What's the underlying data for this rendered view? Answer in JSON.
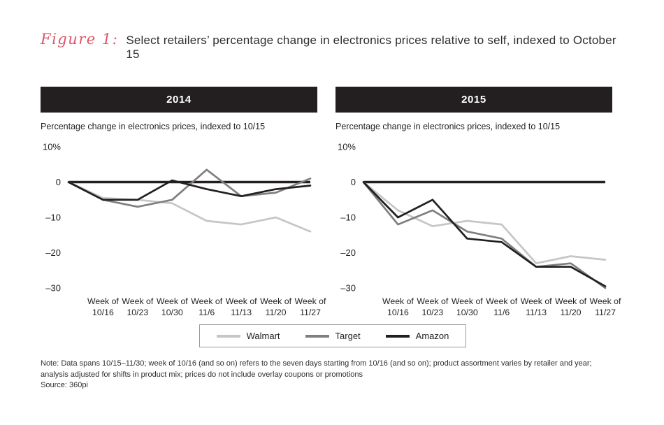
{
  "figure": {
    "label": "Figure 1:",
    "title": "Select retailers’ percentage change in electronics prices relative to self, indexed to October 15"
  },
  "panels": [
    {
      "year": "2014",
      "subtitle": "Percentage change in electronics prices, indexed to 10/15"
    },
    {
      "year": "2015",
      "subtitle": "Percentage change in electronics prices, indexed to 10/15"
    }
  ],
  "legend": {
    "items": [
      {
        "name": "Walmart",
        "color": "#c6c6c6"
      },
      {
        "name": "Target",
        "color": "#7f7f7f"
      },
      {
        "name": "Amazon",
        "color": "#231f20"
      }
    ]
  },
  "notes": {
    "note": "Note: Data spans 10/15–11/30; week of 10/16 (and so on) refers to the seven days starting from 10/16 (and so on); product assortment varies by retailer and year; analysis adjusted for shifts in product mix; prices do not include overlay coupons or promotions",
    "source": "Source: 360pi"
  },
  "colors": {
    "accent": "#df5468",
    "bar": "#231f20",
    "zero_line": "#231f20"
  },
  "chart_data": [
    {
      "type": "line",
      "title": "2014",
      "ylabel": "Percentage change in electronics prices, indexed to 10/15",
      "ylim": [
        -30,
        10
      ],
      "grid": false,
      "yticks": [
        {
          "value": 10,
          "label": "10%"
        },
        {
          "value": 0,
          "label": "0"
        },
        {
          "value": -10,
          "label": "–10"
        },
        {
          "value": -20,
          "label": "–20"
        },
        {
          "value": -30,
          "label": "–30"
        }
      ],
      "x": [
        "10/15",
        "10/16",
        "10/23",
        "10/30",
        "11/6",
        "11/13",
        "11/20",
        "11/27"
      ],
      "xtick_labels": [
        {
          "line1": "Week of",
          "line2": "10/16"
        },
        {
          "line1": "Week of",
          "line2": "10/23"
        },
        {
          "line1": "Week of",
          "line2": "10/30"
        },
        {
          "line1": "Week of",
          "line2": "11/6"
        },
        {
          "line1": "Week of",
          "line2": "11/13"
        },
        {
          "line1": "Week of",
          "line2": "11/20"
        },
        {
          "line1": "Week of",
          "line2": "11/27"
        }
      ],
      "series": [
        {
          "name": "Walmart",
          "color": "#c6c6c6",
          "values": [
            0,
            -4.5,
            -5,
            -6,
            -11,
            -12,
            -10,
            -14
          ]
        },
        {
          "name": "Target",
          "color": "#7f7f7f",
          "values": [
            0,
            -5,
            -7,
            -5,
            3.5,
            -4,
            -3,
            1
          ]
        },
        {
          "name": "Amazon",
          "color": "#231f20",
          "values": [
            0,
            -5,
            -5,
            0.5,
            -2,
            -4,
            -2,
            -1
          ]
        }
      ]
    },
    {
      "type": "line",
      "title": "2015",
      "ylabel": "Percentage change in electronics prices, indexed to 10/15",
      "ylim": [
        -30,
        10
      ],
      "grid": false,
      "yticks": [
        {
          "value": 10,
          "label": "10%"
        },
        {
          "value": 0,
          "label": "0"
        },
        {
          "value": -10,
          "label": "–10"
        },
        {
          "value": -20,
          "label": "–20"
        },
        {
          "value": -30,
          "label": "–30"
        }
      ],
      "x": [
        "10/15",
        "10/16",
        "10/23",
        "10/30",
        "11/6",
        "11/13",
        "11/20",
        "11/27"
      ],
      "xtick_labels": [
        {
          "line1": "Week of",
          "line2": "10/16"
        },
        {
          "line1": "Week of",
          "line2": "10/23"
        },
        {
          "line1": "Week of",
          "line2": "10/30"
        },
        {
          "line1": "Week of",
          "line2": "11/6"
        },
        {
          "line1": "Week of",
          "line2": "11/13"
        },
        {
          "line1": "Week of",
          "line2": "11/20"
        },
        {
          "line1": "Week of",
          "line2": "11/27"
        }
      ],
      "series": [
        {
          "name": "Walmart",
          "color": "#c6c6c6",
          "values": [
            0,
            -8,
            -12.5,
            -11,
            -12,
            -23,
            -21,
            -22
          ]
        },
        {
          "name": "Target",
          "color": "#7f7f7f",
          "values": [
            0,
            -12,
            -8,
            -14,
            -16,
            -24,
            -23,
            -30
          ]
        },
        {
          "name": "Amazon",
          "color": "#231f20",
          "values": [
            0,
            -10,
            -5,
            -16,
            -17,
            -24,
            -24,
            -29.5
          ]
        }
      ]
    }
  ]
}
